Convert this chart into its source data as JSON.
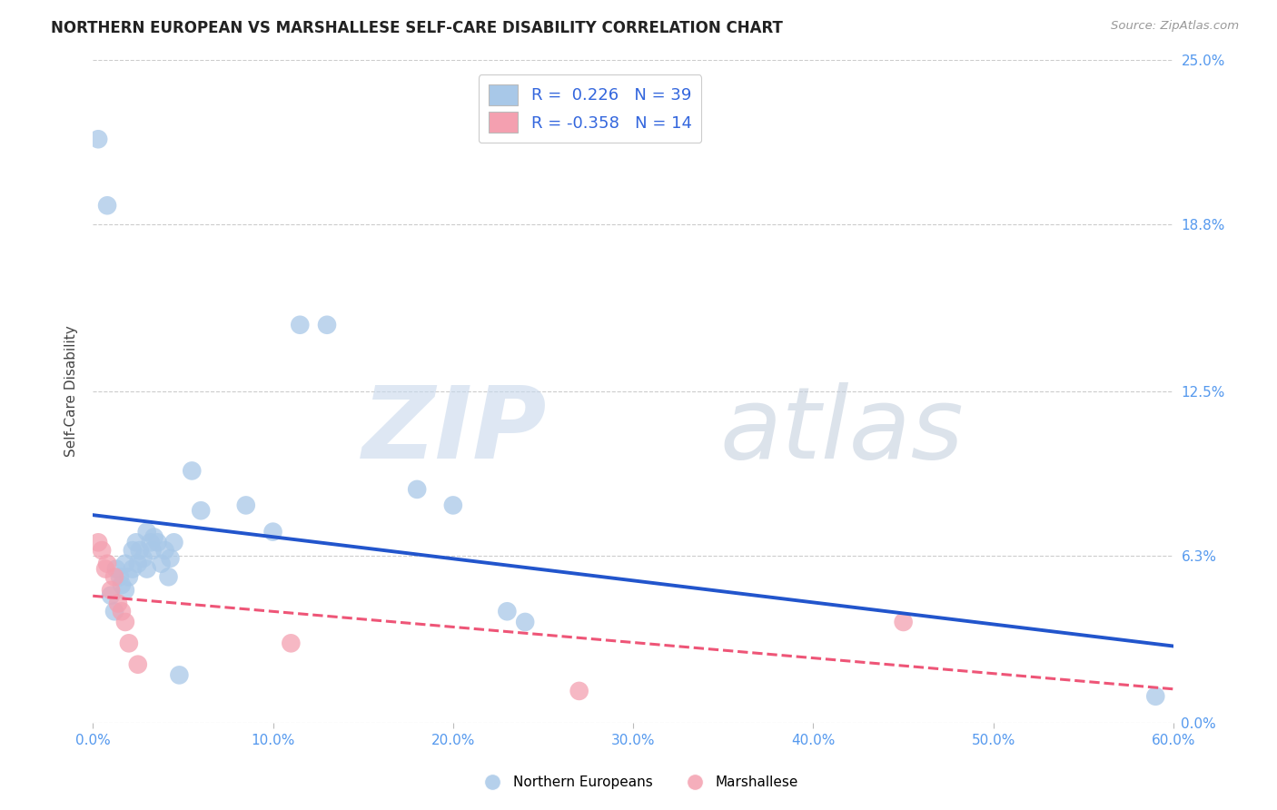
{
  "title": "NORTHERN EUROPEAN VS MARSHALLESE SELF-CARE DISABILITY CORRELATION CHART",
  "source": "Source: ZipAtlas.com",
  "xlabel_ticks": [
    "0.0%",
    "10.0%",
    "20.0%",
    "30.0%",
    "40.0%",
    "50.0%",
    "60.0%"
  ],
  "xlabel_vals": [
    0.0,
    0.1,
    0.2,
    0.3,
    0.4,
    0.5,
    0.6
  ],
  "ylabel_ticks": [
    "0.0%",
    "6.3%",
    "12.5%",
    "18.8%",
    "25.0%"
  ],
  "ylabel_vals": [
    0.0,
    0.063,
    0.125,
    0.188,
    0.25
  ],
  "xlim": [
    0.0,
    0.6
  ],
  "ylim": [
    0.0,
    0.25
  ],
  "blue_R": 0.226,
  "blue_N": 39,
  "pink_R": -0.358,
  "pink_N": 14,
  "blue_color": "#A8C8E8",
  "pink_color": "#F4A0B0",
  "blue_line_color": "#2255CC",
  "pink_line_color": "#EE5577",
  "blue_scatter": [
    [
      0.003,
      0.22
    ],
    [
      0.008,
      0.195
    ],
    [
      0.01,
      0.048
    ],
    [
      0.012,
      0.042
    ],
    [
      0.013,
      0.058
    ],
    [
      0.015,
      0.055
    ],
    [
      0.016,
      0.052
    ],
    [
      0.018,
      0.05
    ],
    [
      0.018,
      0.06
    ],
    [
      0.02,
      0.055
    ],
    [
      0.022,
      0.065
    ],
    [
      0.022,
      0.058
    ],
    [
      0.024,
      0.068
    ],
    [
      0.025,
      0.06
    ],
    [
      0.026,
      0.065
    ],
    [
      0.028,
      0.062
    ],
    [
      0.03,
      0.058
    ],
    [
      0.03,
      0.072
    ],
    [
      0.032,
      0.068
    ],
    [
      0.033,
      0.065
    ],
    [
      0.034,
      0.07
    ],
    [
      0.036,
      0.068
    ],
    [
      0.038,
      0.06
    ],
    [
      0.04,
      0.065
    ],
    [
      0.042,
      0.055
    ],
    [
      0.043,
      0.062
    ],
    [
      0.045,
      0.068
    ],
    [
      0.048,
      0.018
    ],
    [
      0.055,
      0.095
    ],
    [
      0.06,
      0.08
    ],
    [
      0.085,
      0.082
    ],
    [
      0.1,
      0.072
    ],
    [
      0.115,
      0.15
    ],
    [
      0.13,
      0.15
    ],
    [
      0.18,
      0.088
    ],
    [
      0.2,
      0.082
    ],
    [
      0.23,
      0.042
    ],
    [
      0.24,
      0.038
    ],
    [
      0.59,
      0.01
    ]
  ],
  "pink_scatter": [
    [
      0.003,
      0.068
    ],
    [
      0.005,
      0.065
    ],
    [
      0.007,
      0.058
    ],
    [
      0.008,
      0.06
    ],
    [
      0.01,
      0.05
    ],
    [
      0.012,
      0.055
    ],
    [
      0.014,
      0.045
    ],
    [
      0.016,
      0.042
    ],
    [
      0.018,
      0.038
    ],
    [
      0.02,
      0.03
    ],
    [
      0.025,
      0.022
    ],
    [
      0.11,
      0.03
    ],
    [
      0.27,
      0.012
    ],
    [
      0.45,
      0.038
    ]
  ],
  "watermark_zip": "ZIP",
  "watermark_atlas": "atlas",
  "background_color": "#FFFFFF",
  "grid_color": "#CCCCCC",
  "ylabel": "Self-Care Disability",
  "legend_label_blue": "Northern Europeans",
  "legend_label_pink": "Marshallese"
}
